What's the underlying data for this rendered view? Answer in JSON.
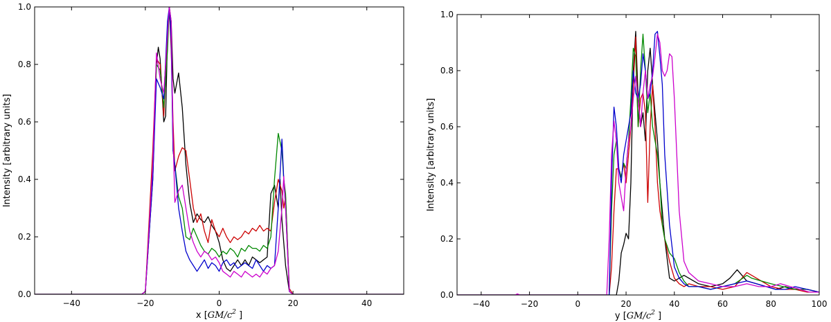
{
  "chart_data": [
    {
      "type": "line",
      "xlabel": "x [GM/c²]",
      "xlabel_math": "GM/c",
      "xlabel_prefix": "x [",
      "xlabel_suffix": " ]",
      "ylabel": "Intensity [arbitrary units]",
      "xlim": [
        -50,
        50
      ],
      "ylim": [
        0,
        1.0
      ],
      "xticks": [
        -40,
        -20,
        0,
        20,
        40
      ],
      "yticks": [
        0.0,
        0.2,
        0.4,
        0.6,
        0.8,
        1.0
      ],
      "xtick_labels": [
        "−40",
        "−20",
        "0",
        "20",
        "40"
      ],
      "ytick_labels": [
        "0.0",
        "0.2",
        "0.4",
        "0.6",
        "0.8",
        "1.0"
      ],
      "grid": false,
      "series": [
        {
          "color": "#000000",
          "x": [
            -50,
            -21,
            -20,
            -18,
            -17,
            -16.5,
            -16,
            -15,
            -14.5,
            -14,
            -13.5,
            -13,
            -12.5,
            -12,
            -11,
            -10,
            -9,
            -8,
            -7,
            -6,
            -5,
            -4,
            -3,
            -2,
            -1,
            0,
            1,
            2,
            3,
            4,
            5,
            6,
            7,
            8,
            9,
            10,
            11,
            12,
            13,
            14,
            15,
            16,
            16.5,
            17,
            18,
            19,
            20,
            50
          ],
          "y": [
            0,
            0,
            0.01,
            0.4,
            0.8,
            0.86,
            0.82,
            0.6,
            0.62,
            0.9,
            1.0,
            0.95,
            0.75,
            0.7,
            0.77,
            0.65,
            0.45,
            0.32,
            0.25,
            0.28,
            0.26,
            0.25,
            0.27,
            0.24,
            0.22,
            0.18,
            0.12,
            0.09,
            0.08,
            0.1,
            0.12,
            0.1,
            0.12,
            0.1,
            0.13,
            0.12,
            0.11,
            0.12,
            0.13,
            0.35,
            0.38,
            0.3,
            0.4,
            0.26,
            0.1,
            0.01,
            0,
            0
          ]
        },
        {
          "color": "#cc0000",
          "x": [
            -50,
            -21,
            -20,
            -18,
            -17,
            -16,
            -15,
            -14,
            -13.5,
            -13,
            -12.5,
            -12,
            -11,
            -10,
            -9,
            -8,
            -7,
            -6,
            -5,
            -4,
            -3,
            -2,
            -1,
            0,
            1,
            2,
            3,
            4,
            5,
            6,
            7,
            8,
            9,
            10,
            11,
            12,
            13,
            14,
            15,
            16,
            17,
            17.5,
            18,
            19,
            20,
            50
          ],
          "y": [
            0,
            0,
            0.01,
            0.5,
            0.82,
            0.8,
            0.62,
            0.9,
            1.0,
            0.85,
            0.6,
            0.43,
            0.48,
            0.51,
            0.5,
            0.4,
            0.3,
            0.25,
            0.28,
            0.22,
            0.18,
            0.26,
            0.22,
            0.2,
            0.23,
            0.2,
            0.18,
            0.2,
            0.19,
            0.2,
            0.22,
            0.21,
            0.23,
            0.22,
            0.24,
            0.22,
            0.23,
            0.22,
            0.32,
            0.4,
            0.36,
            0.3,
            0.34,
            0.02,
            0,
            0
          ]
        },
        {
          "color": "#008800",
          "x": [
            -50,
            -21,
            -20,
            -18,
            -17,
            -16,
            -15,
            -14,
            -13.5,
            -13,
            -12.5,
            -12,
            -11,
            -10,
            -9,
            -8,
            -7,
            -6,
            -5,
            -4,
            -3,
            -2,
            -1,
            0,
            1,
            2,
            3,
            4,
            5,
            6,
            7,
            8,
            9,
            10,
            11,
            12,
            13,
            14,
            15,
            16,
            17,
            17.5,
            18,
            19,
            20,
            50
          ],
          "y": [
            0,
            0,
            0.01,
            0.45,
            0.8,
            0.78,
            0.65,
            0.85,
            1.0,
            0.9,
            0.5,
            0.45,
            0.34,
            0.3,
            0.2,
            0.19,
            0.23,
            0.2,
            0.17,
            0.15,
            0.14,
            0.16,
            0.15,
            0.13,
            0.15,
            0.14,
            0.16,
            0.15,
            0.13,
            0.16,
            0.15,
            0.17,
            0.16,
            0.16,
            0.15,
            0.17,
            0.16,
            0.2,
            0.4,
            0.56,
            0.5,
            0.4,
            0.35,
            0.01,
            0,
            0
          ]
        },
        {
          "color": "#0000cc",
          "x": [
            -50,
            -21,
            -20,
            -18,
            -17,
            -16,
            -15,
            -14,
            -13.5,
            -13,
            -12.5,
            -12,
            -11,
            -10,
            -9,
            -8,
            -7,
            -6,
            -5,
            -4,
            -3,
            -2,
            -1,
            0,
            1,
            2,
            3,
            4,
            5,
            6,
            7,
            8,
            9,
            10,
            11,
            12,
            13,
            14,
            15,
            16,
            17,
            17.5,
            18,
            19,
            20,
            50
          ],
          "y": [
            0,
            0,
            0.01,
            0.4,
            0.75,
            0.72,
            0.68,
            0.95,
            1.0,
            0.88,
            0.5,
            0.45,
            0.3,
            0.22,
            0.15,
            0.12,
            0.1,
            0.08,
            0.1,
            0.12,
            0.09,
            0.11,
            0.1,
            0.08,
            0.11,
            0.12,
            0.1,
            0.11,
            0.09,
            0.1,
            0.11,
            0.1,
            0.09,
            0.12,
            0.1,
            0.08,
            0.1,
            0.09,
            0.1,
            0.3,
            0.54,
            0.4,
            0.3,
            0.01,
            0,
            0
          ]
        },
        {
          "color": "#cc00cc",
          "x": [
            -50,
            -21,
            -20,
            -18,
            -17,
            -16,
            -15,
            -14,
            -13.5,
            -13,
            -12.5,
            -12,
            -11,
            -10,
            -9,
            -8,
            -7,
            -6,
            -5,
            -4,
            -3,
            -2,
            -1,
            0,
            1,
            2,
            3,
            4,
            5,
            6,
            7,
            8,
            9,
            10,
            11,
            12,
            13,
            14,
            15,
            16,
            17,
            17.5,
            18,
            19,
            20,
            50
          ],
          "y": [
            0,
            0,
            0.01,
            0.45,
            0.84,
            0.75,
            0.7,
            0.9,
            1.0,
            0.95,
            0.55,
            0.32,
            0.36,
            0.38,
            0.3,
            0.22,
            0.18,
            0.15,
            0.13,
            0.15,
            0.14,
            0.12,
            0.13,
            0.11,
            0.08,
            0.07,
            0.06,
            0.08,
            0.07,
            0.06,
            0.08,
            0.07,
            0.06,
            0.07,
            0.06,
            0.08,
            0.07,
            0.09,
            0.1,
            0.15,
            0.3,
            0.41,
            0.3,
            0.01,
            0,
            0
          ]
        }
      ]
    },
    {
      "type": "line",
      "xlabel": "y [GM/c²]",
      "xlabel_math": "GM/c",
      "xlabel_prefix": "y [",
      "xlabel_suffix": " ]",
      "ylabel": "Intensity [arbitrary units]",
      "xlim": [
        -50,
        100
      ],
      "ylim": [
        0,
        1.0
      ],
      "xticks": [
        -40,
        -20,
        0,
        20,
        40,
        60,
        80,
        100
      ],
      "yticks": [
        0.0,
        0.2,
        0.4,
        0.6,
        0.8,
        1.0
      ],
      "xtick_labels": [
        "−40",
        "−20",
        "0",
        "20",
        "40",
        "60",
        "80",
        "100"
      ],
      "ytick_labels": [
        "0.0",
        "0.2",
        "0.4",
        "0.6",
        "0.8",
        "1.0"
      ],
      "grid": false,
      "series": [
        {
          "color": "#000000",
          "x": [
            -50,
            16,
            17,
            18,
            19,
            20,
            21,
            22,
            23,
            24,
            25,
            26,
            27,
            28,
            29,
            30,
            31,
            32,
            33,
            34,
            35,
            36,
            38,
            40,
            42,
            44,
            46,
            50,
            55,
            60,
            63,
            66,
            68,
            70,
            74,
            78,
            82,
            86,
            90,
            95,
            100
          ],
          "y": [
            0,
            0,
            0.05,
            0.15,
            0.18,
            0.22,
            0.2,
            0.4,
            0.8,
            0.94,
            0.7,
            0.6,
            0.65,
            0.55,
            0.8,
            0.88,
            0.75,
            0.65,
            0.55,
            0.4,
            0.3,
            0.2,
            0.06,
            0.05,
            0.06,
            0.07,
            0.06,
            0.04,
            0.03,
            0.04,
            0.06,
            0.09,
            0.07,
            0.05,
            0.04,
            0.03,
            0.02,
            0.03,
            0.02,
            0.02,
            0.01
          ]
        },
        {
          "color": "#cc0000",
          "x": [
            -50,
            13,
            14,
            15,
            16,
            17,
            18,
            19,
            20,
            21,
            22,
            23,
            24,
            25,
            26,
            27,
            28,
            29,
            30,
            31,
            32,
            33,
            34,
            35,
            36,
            38,
            40,
            42,
            44,
            46,
            50,
            55,
            60,
            65,
            68,
            70,
            72,
            76,
            80,
            85,
            90,
            95,
            100
          ],
          "y": [
            0,
            0,
            0.1,
            0.3,
            0.45,
            0.45,
            0.42,
            0.47,
            0.4,
            0.5,
            0.6,
            0.75,
            0.92,
            0.6,
            0.7,
            0.72,
            0.65,
            0.33,
            0.6,
            0.75,
            0.6,
            0.4,
            0.3,
            0.25,
            0.2,
            0.12,
            0.06,
            0.04,
            0.03,
            0.04,
            0.03,
            0.03,
            0.02,
            0.03,
            0.06,
            0.08,
            0.07,
            0.05,
            0.03,
            0.02,
            0.02,
            0.01,
            0.01
          ]
        },
        {
          "color": "#008800",
          "x": [
            -50,
            13,
            14,
            15,
            16,
            17,
            18,
            19,
            20,
            21,
            22,
            23,
            24,
            25,
            26,
            27,
            28,
            29,
            30,
            31,
            32,
            33,
            34,
            35,
            36,
            38,
            40,
            42,
            44,
            46,
            50,
            55,
            60,
            65,
            70,
            72,
            76,
            80,
            85,
            90,
            95,
            100
          ],
          "y": [
            0,
            0,
            0.3,
            0.5,
            0.55,
            0.45,
            0.42,
            0.47,
            0.45,
            0.55,
            0.7,
            0.88,
            0.85,
            0.6,
            0.8,
            0.93,
            0.8,
            0.65,
            0.72,
            0.6,
            0.55,
            0.5,
            0.4,
            0.25,
            0.2,
            0.15,
            0.13,
            0.08,
            0.05,
            0.03,
            0.03,
            0.02,
            0.03,
            0.04,
            0.07,
            0.06,
            0.05,
            0.04,
            0.03,
            0.02,
            0.02,
            0.01
          ]
        },
        {
          "color": "#0000cc",
          "x": [
            -50,
            13,
            14,
            15,
            16,
            17,
            18,
            19,
            20,
            21,
            22,
            23,
            24,
            25,
            26,
            27,
            28,
            29,
            30,
            31,
            32,
            33,
            34,
            35,
            36,
            38,
            40,
            42,
            44,
            46,
            50,
            55,
            60,
            65,
            70,
            74,
            78,
            82,
            86,
            90,
            95,
            100
          ],
          "y": [
            0,
            0,
            0.4,
            0.67,
            0.6,
            0.45,
            0.4,
            0.5,
            0.55,
            0.6,
            0.65,
            0.8,
            0.72,
            0.7,
            0.75,
            0.86,
            0.8,
            0.7,
            0.72,
            0.8,
            0.93,
            0.94,
            0.85,
            0.75,
            0.5,
            0.25,
            0.1,
            0.06,
            0.04,
            0.03,
            0.03,
            0.02,
            0.03,
            0.04,
            0.05,
            0.04,
            0.03,
            0.02,
            0.02,
            0.03,
            0.02,
            0.01
          ]
        },
        {
          "color": "#cc00cc",
          "x": [
            -50,
            -26,
            -25,
            -24,
            12,
            13,
            14,
            15,
            16,
            17,
            18,
            19,
            20,
            21,
            22,
            23,
            24,
            25,
            26,
            27,
            28,
            29,
            30,
            31,
            32,
            33,
            34,
            35,
            36,
            37,
            38,
            39,
            40,
            42,
            44,
            46,
            50,
            55,
            60,
            65,
            70,
            75,
            80,
            84,
            88,
            92,
            96,
            100
          ],
          "y": [
            0,
            0,
            0.004,
            0,
            0,
            0.2,
            0.5,
            0.62,
            0.55,
            0.4,
            0.35,
            0.3,
            0.45,
            0.55,
            0.6,
            0.7,
            0.78,
            0.7,
            0.6,
            0.72,
            0.8,
            0.7,
            0.75,
            0.78,
            0.85,
            0.93,
            0.9,
            0.8,
            0.78,
            0.8,
            0.86,
            0.85,
            0.7,
            0.3,
            0.12,
            0.08,
            0.05,
            0.04,
            0.03,
            0.03,
            0.04,
            0.03,
            0.03,
            0.04,
            0.03,
            0.02,
            0.01,
            0.01
          ]
        }
      ]
    }
  ]
}
